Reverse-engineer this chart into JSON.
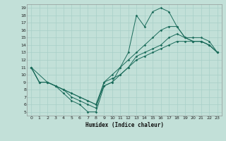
{
  "xlabel": "Humidex (Indice chaleur)",
  "bg_color": "#c2e0d8",
  "line_color": "#1a6b5a",
  "grid_color": "#a8cfc8",
  "xlim": [
    -0.5,
    23.5
  ],
  "ylim": [
    4.5,
    19.5
  ],
  "xticks": [
    0,
    1,
    2,
    3,
    4,
    5,
    6,
    7,
    8,
    9,
    10,
    11,
    12,
    13,
    14,
    15,
    16,
    17,
    18,
    19,
    20,
    21,
    22,
    23
  ],
  "yticks": [
    5,
    6,
    7,
    8,
    9,
    10,
    11,
    12,
    13,
    14,
    15,
    16,
    17,
    18,
    19
  ],
  "line1_x": [
    0,
    1,
    2,
    3,
    4,
    5,
    6,
    7,
    8,
    9,
    10,
    11,
    12,
    13,
    14,
    15,
    16,
    17,
    18,
    19,
    20,
    21,
    22,
    23
  ],
  "line1_y": [
    11,
    9,
    9,
    8.5,
    7.5,
    6.5,
    6,
    5,
    5,
    8.5,
    9,
    11,
    13,
    18,
    16.5,
    18.5,
    19,
    18.5,
    16.5,
    15,
    14.5,
    14.5,
    14,
    13
  ],
  "line2_x": [
    0,
    1,
    2,
    3,
    4,
    5,
    6,
    7,
    8,
    9,
    10,
    11,
    12,
    13,
    14,
    15,
    16,
    17,
    18,
    19,
    20,
    21,
    22,
    23
  ],
  "line2_y": [
    11,
    9,
    9,
    8.5,
    8,
    7,
    6.5,
    6,
    5.5,
    9,
    10,
    11,
    12,
    13,
    14,
    15,
    16,
    16.5,
    16.5,
    15,
    14.5,
    14.5,
    14,
    13
  ],
  "line3_x": [
    0,
    1,
    2,
    3,
    4,
    5,
    6,
    7,
    8,
    9,
    10,
    11,
    12,
    13,
    14,
    15,
    16,
    17,
    18,
    19,
    20,
    21,
    22,
    23
  ],
  "line3_y": [
    11,
    9,
    9,
    8.5,
    8,
    7.5,
    7,
    6.5,
    6,
    9,
    9.5,
    10,
    11,
    12,
    12.5,
    13,
    13.5,
    14,
    14.5,
    14.5,
    14.5,
    14.5,
    14,
    13
  ],
  "line4_x": [
    0,
    2,
    3,
    4,
    5,
    6,
    7,
    8,
    9,
    10,
    11,
    12,
    13,
    14,
    15,
    16,
    17,
    18,
    19,
    20,
    21,
    22,
    23
  ],
  "line4_y": [
    11,
    9,
    8.5,
    8,
    7.5,
    7,
    6.5,
    6,
    8.5,
    9,
    10,
    11,
    12.5,
    13,
    13.5,
    14,
    15,
    15.5,
    15,
    15,
    15,
    14.5,
    13
  ]
}
